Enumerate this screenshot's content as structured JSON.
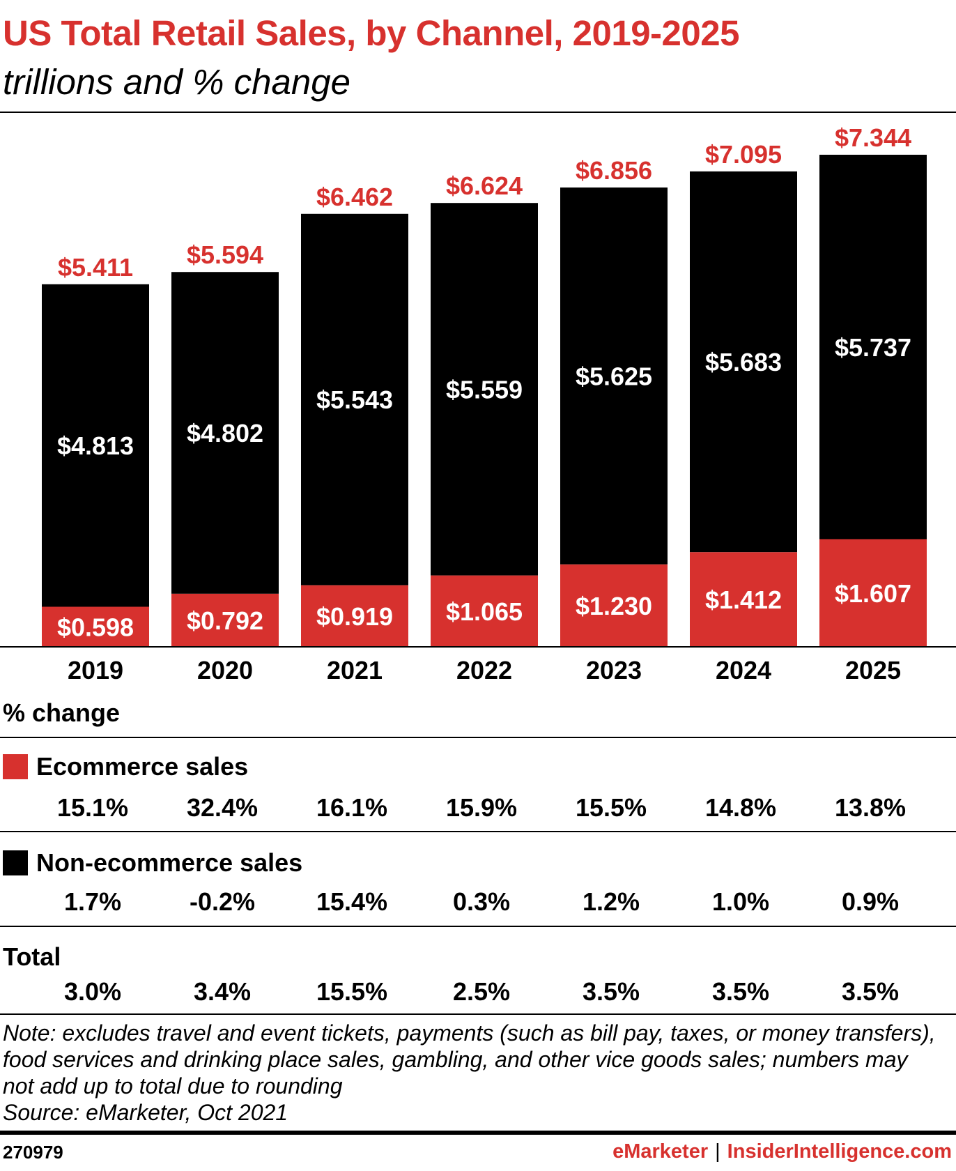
{
  "title": "US Total Retail Sales, by Channel, 2019-2025",
  "subtitle": "trillions and % change",
  "colors": {
    "ecommerce": "#d7312e",
    "non_ecommerce": "#000000",
    "total_label": "#d7312e"
  },
  "chart_data": {
    "type": "bar",
    "stacked": true,
    "categories": [
      "2019",
      "2020",
      "2021",
      "2022",
      "2023",
      "2024",
      "2025"
    ],
    "series": [
      {
        "name": "Ecommerce sales",
        "values": [
          0.598,
          0.792,
          0.919,
          1.065,
          1.23,
          1.412,
          1.607
        ],
        "labels": [
          "$0.598",
          "$0.792",
          "$0.919",
          "$1.065",
          "$1.230",
          "$1.412",
          "$1.607"
        ]
      },
      {
        "name": "Non-ecommerce sales",
        "values": [
          4.813,
          4.802,
          5.543,
          5.559,
          5.625,
          5.683,
          5.737
        ],
        "labels": [
          "$4.813",
          "$4.802",
          "$5.543",
          "$5.559",
          "$5.625",
          "$5.683",
          "$5.737"
        ]
      }
    ],
    "totals": [
      5.411,
      5.594,
      6.462,
      6.624,
      6.856,
      7.095,
      7.344
    ],
    "total_labels": [
      "$5.411",
      "$5.594",
      "$6.462",
      "$6.624",
      "$6.856",
      "$7.095",
      "$7.344"
    ],
    "ylim": [
      0,
      7.344
    ],
    "grid": false
  },
  "pct_change": {
    "heading": "% change",
    "rows": [
      {
        "label": "Ecommerce sales",
        "swatch": "ecommerce",
        "values": [
          "15.1%",
          "32.4%",
          "16.1%",
          "15.9%",
          "15.5%",
          "14.8%",
          "13.8%"
        ]
      },
      {
        "label": "Non-ecommerce sales",
        "swatch": "non_ecommerce",
        "values": [
          "1.7%",
          "-0.2%",
          "15.4%",
          "0.3%",
          "1.2%",
          "1.0%",
          "0.9%"
        ]
      },
      {
        "label": "Total",
        "swatch": null,
        "values": [
          "3.0%",
          "3.4%",
          "15.5%",
          "2.5%",
          "3.5%",
          "3.5%",
          "3.5%"
        ]
      }
    ]
  },
  "note": {
    "lines": [
      "Note: excludes travel and event tickets, payments (such as bill pay, taxes, or money transfers),",
      "food services and drinking place sales, gambling, and other vice goods sales; numbers may",
      "not add up to total due to rounding",
      "Source: eMarketer, Oct 2021"
    ]
  },
  "footer": {
    "chart_id": "270979",
    "brand_1": "eMarketer",
    "separator": "|",
    "brand_2": "InsiderIntelligence.com"
  }
}
